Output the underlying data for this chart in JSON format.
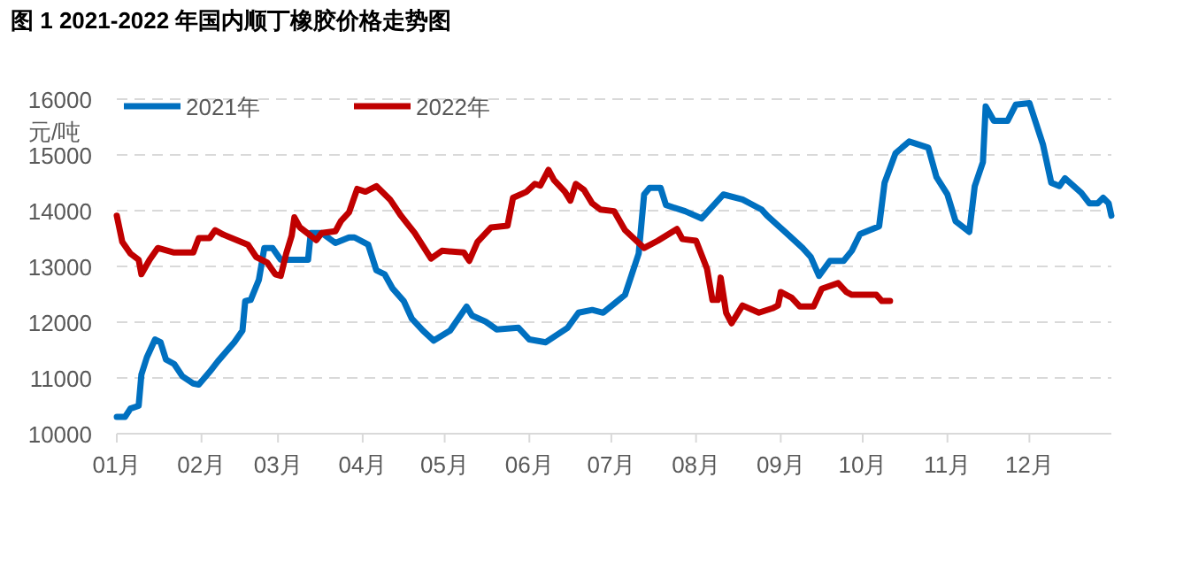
{
  "chart_data": {
    "type": "line",
    "title": "图 1 2021-2022 年国内顺丁橡胶价格走势图",
    "ylabel": "元/吨",
    "ylim": [
      10000,
      16000
    ],
    "yticks": [
      10000,
      11000,
      12000,
      13000,
      14000,
      15000,
      16000
    ],
    "xlim": [
      "--01-01",
      "--12-31"
    ],
    "xticks": [
      {
        "value": "--01-01",
        "label": "01月"
      },
      {
        "value": "--02-01",
        "label": "02月"
      },
      {
        "value": "--03-01",
        "label": "03月"
      },
      {
        "value": "--04-01",
        "label": "04月"
      },
      {
        "value": "--05-01",
        "label": "05月"
      },
      {
        "value": "--06-01",
        "label": "06月"
      },
      {
        "value": "--07-01",
        "label": "07月"
      },
      {
        "value": "--08-01",
        "label": "08月"
      },
      {
        "value": "--09-01",
        "label": "09月"
      },
      {
        "value": "--10-01",
        "label": "10月"
      },
      {
        "value": "--11-01",
        "label": "11月"
      },
      {
        "value": "--12-01",
        "label": "12月"
      }
    ],
    "grid": "y",
    "legend": "top left",
    "line_style": "solid",
    "series": [
      {
        "name": "2021年",
        "color": "#0070c0",
        "x": [
          "--01-01",
          "--01-04",
          "--01-06",
          "--01-09",
          "--01-10",
          "--01-12",
          "--01-15",
          "--01-17",
          "--01-19",
          "--01-22",
          "--01-25",
          "--01-29",
          "--01-31",
          "--02-04",
          "--02-07",
          "--02-13",
          "--02-16",
          "--02-17",
          "--02-19",
          "--02-22",
          "--02-24",
          "--02-27",
          "--03-02",
          "--03-12",
          "--03-13",
          "--03-17",
          "--03-22",
          "--03-27",
          "--03-29",
          "--04-03",
          "--04-06",
          "--04-09",
          "--04-12",
          "--04-16",
          "--04-19",
          "--04-23",
          "--04-27",
          "--05-03",
          "--05-09",
          "--05-11",
          "--05-16",
          "--05-20",
          "--05-28",
          "--06-01",
          "--06-07",
          "--06-15",
          "--06-19",
          "--06-24",
          "--06-28",
          "--07-02",
          "--07-06",
          "--07-11",
          "--07-13",
          "--07-15",
          "--07-19",
          "--07-21",
          "--07-28",
          "--08-03",
          "--08-11",
          "--08-18",
          "--08-25",
          "--08-27",
          "--09-03",
          "--09-09",
          "--09-12",
          "--09-15",
          "--09-19",
          "--09-24",
          "--09-27",
          "--09-30",
          "--10-07",
          "--10-09",
          "--10-13",
          "--10-18",
          "--10-25",
          "--10-28",
          "--11-01",
          "--11-04",
          "--11-09",
          "--11-11",
          "--11-14",
          "--11-15",
          "--11-18",
          "--11-23",
          "--11-26",
          "--12-01",
          "--12-06",
          "--12-09",
          "--12-12",
          "--12-14",
          "--12-20",
          "--12-23",
          "--12-26",
          "--12-28",
          "--12-30",
          "--12-31"
        ],
        "values": [
          10300,
          10300,
          10450,
          10500,
          11060,
          11370,
          11690,
          11640,
          11330,
          11250,
          11030,
          10900,
          10880,
          11110,
          11300,
          11640,
          11850,
          12380,
          12400,
          12760,
          13330,
          13330,
          13120,
          13120,
          13600,
          13600,
          13420,
          13520,
          13520,
          13390,
          12930,
          12860,
          12600,
          12380,
          12060,
          11850,
          11670,
          11850,
          12280,
          12120,
          12010,
          11870,
          11900,
          11690,
          11640,
          11900,
          12170,
          12220,
          12170,
          12330,
          12490,
          13230,
          14290,
          14410,
          14410,
          14100,
          13990,
          13860,
          14290,
          14200,
          14020,
          13910,
          13600,
          13330,
          13170,
          12830,
          13100,
          13100,
          13280,
          13580,
          13720,
          14500,
          15030,
          15240,
          15130,
          14600,
          14290,
          13810,
          13620,
          14440,
          14870,
          15870,
          15610,
          15610,
          15900,
          15930,
          15180,
          14500,
          14440,
          14580,
          14320,
          14130,
          14130,
          14230,
          14130,
          13910
        ]
      },
      {
        "name": "2022年",
        "color": "#c00000",
        "x": [
          "--01-01",
          "--01-03",
          "--01-06",
          "--01-09",
          "--01-10",
          "--01-13",
          "--01-16",
          "--01-22",
          "--01-29",
          "--01-31",
          "--02-04",
          "--02-06",
          "--02-09",
          "--02-18",
          "--02-21",
          "--02-25",
          "--02-28",
          "--03-02",
          "--03-04",
          "--03-06",
          "--03-07",
          "--03-09",
          "--03-13",
          "--03-15",
          "--03-17",
          "--03-22",
          "--03-24",
          "--03-27",
          "--03-30",
          "--04-02",
          "--04-06",
          "--04-11",
          "--04-15",
          "--04-20",
          "--04-26",
          "--04-30",
          "--05-08",
          "--05-10",
          "--05-13",
          "--05-18",
          "--05-24",
          "--05-26",
          "--05-31",
          "--06-03",
          "--06-05",
          "--06-08",
          "--06-10",
          "--06-14",
          "--06-16",
          "--06-18",
          "--06-21",
          "--06-24",
          "--06-27",
          "--07-02",
          "--07-06",
          "--07-13",
          "--07-18",
          "--07-25",
          "--07-27",
          "--08-01",
          "--08-05",
          "--08-07",
          "--08-09",
          "--08-10",
          "--08-12",
          "--08-14",
          "--08-18",
          "--08-24",
          "--08-29",
          "--08-31",
          "--09-01",
          "--09-05",
          "--09-08",
          "--09-13",
          "--09-16",
          "--09-22",
          "--09-25",
          "--09-27",
          "--10-06",
          "--10-08",
          "--10-11"
        ],
        "values": [
          13910,
          13440,
          13230,
          13120,
          12860,
          13120,
          13330,
          13250,
          13250,
          13510,
          13510,
          13650,
          13570,
          13390,
          13170,
          13070,
          12860,
          12830,
          13230,
          13550,
          13880,
          13700,
          13550,
          13470,
          13600,
          13630,
          13810,
          13970,
          14390,
          14340,
          14440,
          14200,
          13910,
          13600,
          13140,
          13280,
          13250,
          13100,
          13440,
          13700,
          13730,
          14230,
          14340,
          14480,
          14450,
          14730,
          14550,
          14340,
          14180,
          14480,
          14370,
          14130,
          14020,
          13990,
          13650,
          13330,
          13460,
          13670,
          13490,
          13460,
          12960,
          12400,
          12400,
          12800,
          12170,
          11980,
          12300,
          12170,
          12250,
          12300,
          12540,
          12440,
          12280,
          12280,
          12600,
          12700,
          12540,
          12490,
          12490,
          12380,
          12380
        ]
      }
    ]
  }
}
